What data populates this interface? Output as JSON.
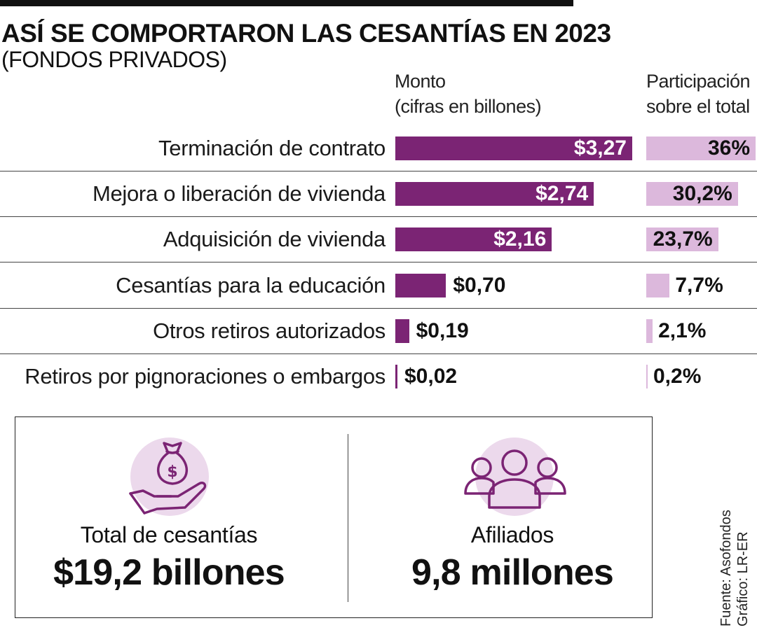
{
  "header": {
    "title": "ASÍ SE COMPORTARON LAS CESANTÍAS EN 2023",
    "subtitle": "(FONDOS PRIVADOS)"
  },
  "chart_data": {
    "type": "bar",
    "columns": {
      "amount_line1": "Monto",
      "amount_line2": "(cifras en billones)",
      "share_line1": "Participación",
      "share_line2": "sobre el total"
    },
    "categories": [
      "Terminación de contrato",
      "Mejora o liberación de vivienda",
      "Adquisición de vivienda",
      "Cesantías para la educación",
      "Otros retiros autorizados",
      "Retiros por pignoraciones o embargos"
    ],
    "series": [
      {
        "values": [
          3.27,
          2.74,
          2.16,
          0.7,
          0.19,
          0.02
        ],
        "labels": [
          "$3,27",
          "$2,74",
          "$2,16",
          "$0,70",
          "$0,19",
          "$0,02"
        ],
        "color": "#7b2474"
      },
      {
        "values": [
          36,
          30.2,
          23.7,
          7.7,
          2.1,
          0.2
        ],
        "labels": [
          "36%",
          "30,2%",
          "23,7%",
          "7,7%",
          "2,1%",
          "0,2%"
        ],
        "color": "#dcb8dc"
      }
    ]
  },
  "summary": {
    "total_label": "Total de cesantías",
    "total_value": "$19,2 billones",
    "total_icon": "money-bag-hand-icon",
    "affiliates_label": "Afiliados",
    "affiliates_value": "9,8 millones",
    "affiliates_icon": "people-group-icon",
    "accent_color": "#7b2474",
    "icon_bg_color": "#ecd9ec"
  },
  "source": {
    "line1": "Fuente: Asofondos",
    "line2": "Gráfico: LR-ER"
  }
}
